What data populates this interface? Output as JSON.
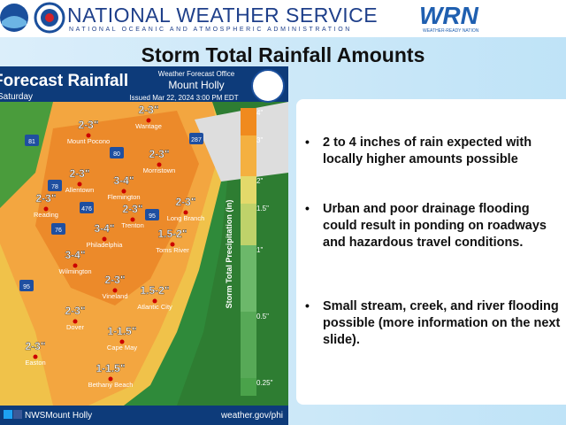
{
  "header": {
    "agency": "NATIONAL WEATHER SERVICE",
    "parent": "NATIONAL OCEANIC AND ATMOSPHERIC ADMINISTRATION",
    "wrn_logo": "WRN",
    "wrn_tagline": "WEATHER-READY NATION"
  },
  "title": "Storm Total Rainfall Amounts",
  "map": {
    "title": "Forecast Rainfall",
    "day": "Saturday",
    "office_label": "Weather Forecast Office",
    "office": "Mount Holly",
    "issued": "Issued Mar 22, 2024 3:00 PM EDT",
    "legend_title": "Storm Total Precipitation (in)",
    "legend": [
      "4\"",
      "3\"",
      "2\"",
      "1.5\"",
      "1\"",
      "0.5\"",
      "0.25\""
    ],
    "locations": [
      {
        "amount": "2-3\"",
        "place": "Wantage"
      },
      {
        "amount": "2-3\"",
        "place": "Mount Pocono"
      },
      {
        "amount": "2-3\"",
        "place": "Morristown"
      },
      {
        "amount": "2-3\"",
        "place": "Allentown"
      },
      {
        "amount": "3-4\"",
        "place": "Flemington"
      },
      {
        "amount": "2-3\"",
        "place": "Reading"
      },
      {
        "amount": "2-3\"",
        "place": "Trenton"
      },
      {
        "amount": "2-3\"",
        "place": "Long Branch"
      },
      {
        "amount": "3-4\"",
        "place": "Philadelphia"
      },
      {
        "amount": "1.5-2\"",
        "place": "Toms River"
      },
      {
        "amount": "3-4\"",
        "place": "Wilmington"
      },
      {
        "amount": "2-3\"",
        "place": "Vineland"
      },
      {
        "amount": "1.5-2\"",
        "place": "Atlantic City"
      },
      {
        "amount": "2-3\"",
        "place": "Dover"
      },
      {
        "amount": "1-1.5\"",
        "place": "Cape May"
      },
      {
        "amount": "2-3\"",
        "place": "Easton"
      },
      {
        "amount": "1-1.5\"",
        "place": "Bethany Beach"
      }
    ],
    "highways": [
      "287",
      "81",
      "80",
      "78",
      "476",
      "95",
      "76",
      "95"
    ],
    "footer_social": "NWSMount Holly",
    "footer_url": "weather.gov/phi"
  },
  "bullets": [
    "2 to 4 inches of rain expected with locally higher amounts possible",
    "Urban and poor drainage flooding could result in ponding on roadways and hazardous travel conditions.",
    "Small stream, creek, and river flooding possible (more information on the next slide)."
  ]
}
